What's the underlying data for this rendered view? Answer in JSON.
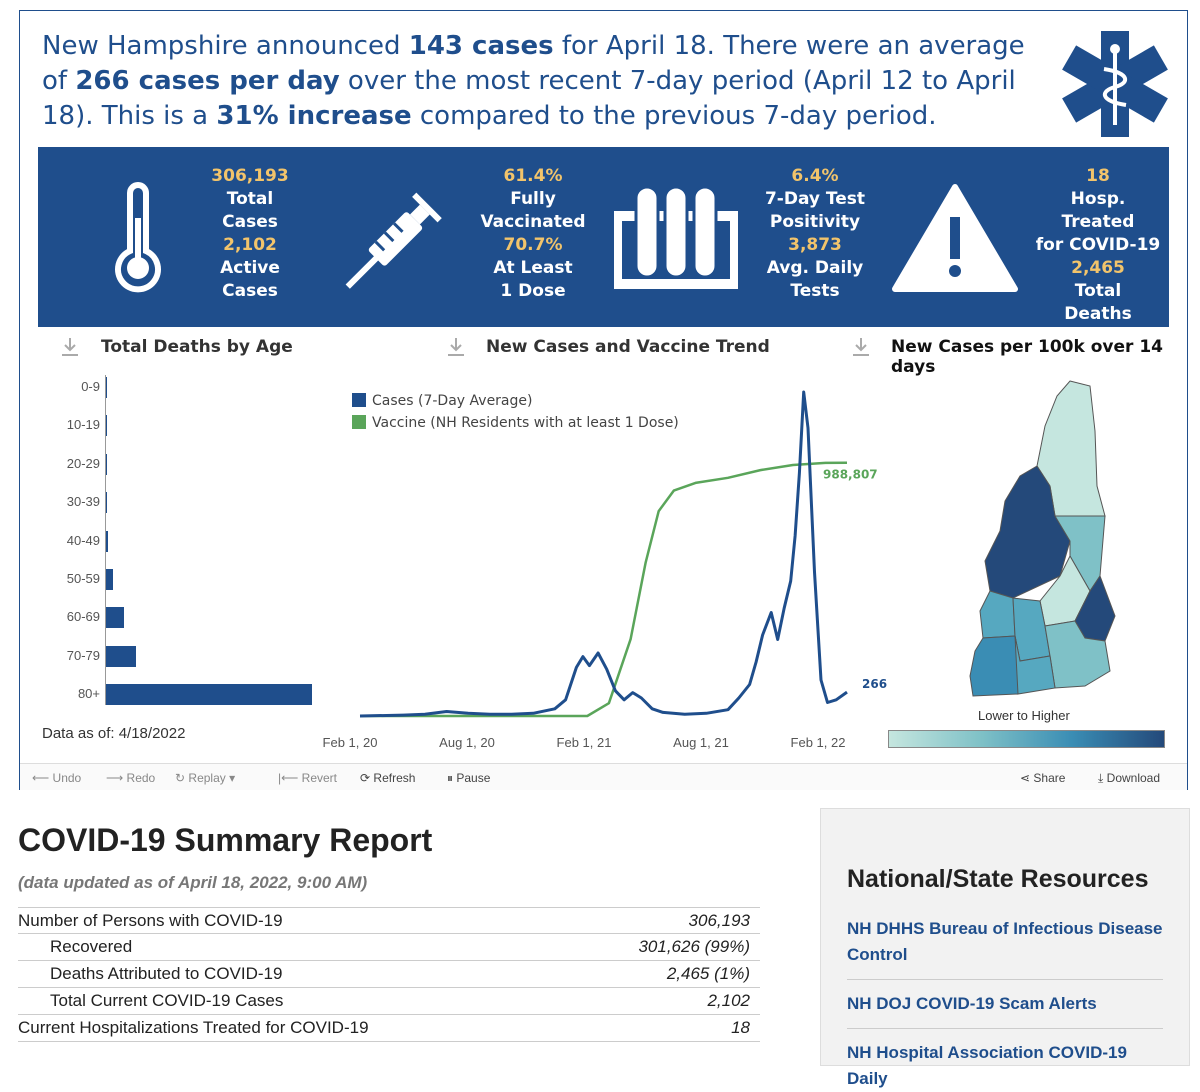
{
  "headline": {
    "p1": "New Hampshire announced ",
    "b1": "143 cases",
    "p2": " for April 18. There were an average of ",
    "b2": "266 cases per day",
    "p3": " over the most recent 7-day period (April 12 to April 18). This is a ",
    "b3": "31% increase",
    "p4": " compared to the previous 7-day period."
  },
  "banner": {
    "cases": {
      "total_value": "306,193",
      "total_label_1": "Total",
      "total_label_2": "Cases",
      "active_value": "2,102",
      "active_label_1": "Active",
      "active_label_2": "Cases"
    },
    "vaccination": {
      "full_value": "61.4%",
      "full_label_1": "Fully",
      "full_label_2": "Vaccinated",
      "dose_value": "70.7%",
      "dose_label_1": "At Least",
      "dose_label_2": "1 Dose"
    },
    "testing": {
      "pos_value": "6.4%",
      "pos_label_1": "7-Day Test",
      "pos_label_2": "Positivity",
      "tests_value": "3,873",
      "tests_label_1": "Avg. Daily",
      "tests_label_2": "Tests"
    },
    "hospital": {
      "hosp_value": "18",
      "hosp_label_1": "Hosp. Treated",
      "hosp_label_2": "for COVID-19",
      "deaths_value": "2,465",
      "deaths_label_1": "Total",
      "deaths_label_2": "Deaths"
    },
    "icons": [
      "thermometer-icon",
      "syringe-icon",
      "test-tubes-icon",
      "warning-icon"
    ]
  },
  "sections": {
    "deaths_by_age": "Total Deaths by Age",
    "trend": "New Cases and Vaccine Trend",
    "map": "New Cases per 100k over 14 days"
  },
  "deaths_by_age": {
    "labels": [
      "0-9",
      "10-19",
      "20-29",
      "30-39",
      "40-49",
      "50-59",
      "60-69",
      "70-79",
      "80+"
    ],
    "values": [
      0,
      1,
      1,
      10,
      20,
      55,
      150,
      250,
      1700
    ],
    "bar_scale_max": 1700,
    "data_as_of": "Data as of: 4/18/2022"
  },
  "chart_data": {
    "type": "line",
    "x_ticks": [
      "Feb 1, 20",
      "Aug 1, 20",
      "Feb 1, 21",
      "Aug 1, 21",
      "Feb 1, 22"
    ],
    "series": [
      {
        "name": "Cases (7-Day Average)",
        "color": "#1f4e8c",
        "end_label": "266",
        "points": [
          [
            0,
            0
          ],
          [
            2,
            10
          ],
          [
            3,
            20
          ],
          [
            4,
            50
          ],
          [
            5,
            30
          ],
          [
            6,
            20
          ],
          [
            7,
            20
          ],
          [
            8,
            30
          ],
          [
            9,
            80
          ],
          [
            9.5,
            180
          ],
          [
            10,
            540
          ],
          [
            10.3,
            660
          ],
          [
            10.6,
            560
          ],
          [
            11,
            700
          ],
          [
            11.4,
            520
          ],
          [
            11.8,
            280
          ],
          [
            12.2,
            180
          ],
          [
            12.6,
            260
          ],
          [
            13,
            200
          ],
          [
            13.5,
            80
          ],
          [
            14,
            40
          ],
          [
            15,
            20
          ],
          [
            16,
            30
          ],
          [
            17,
            70
          ],
          [
            17.5,
            200
          ],
          [
            18,
            350
          ],
          [
            18.3,
            600
          ],
          [
            18.6,
            900
          ],
          [
            19,
            1150
          ],
          [
            19.3,
            850
          ],
          [
            19.6,
            1200
          ],
          [
            19.9,
            1500
          ],
          [
            20.1,
            2000
          ],
          [
            20.3,
            2700
          ],
          [
            20.5,
            3600
          ],
          [
            20.7,
            3200
          ],
          [
            21,
            1600
          ],
          [
            21.3,
            400
          ],
          [
            21.6,
            150
          ],
          [
            22,
            180
          ],
          [
            22.5,
            266
          ]
        ]
      },
      {
        "name": "Vaccine (NH Residents with at least 1 Dose)",
        "color": "#5aa55a",
        "end_label": "988,807",
        "points": [
          [
            0,
            0
          ],
          [
            10.5,
            0
          ],
          [
            11.5,
            50000
          ],
          [
            12.5,
            300000
          ],
          [
            13.2,
            600000
          ],
          [
            13.8,
            800000
          ],
          [
            14.5,
            880000
          ],
          [
            15.5,
            910000
          ],
          [
            17,
            930000
          ],
          [
            18.5,
            960000
          ],
          [
            20,
            980000
          ],
          [
            21.5,
            988000
          ],
          [
            22.5,
            988807
          ]
        ]
      }
    ],
    "x_range": [
      0,
      27
    ],
    "cases_ylim": [
      0,
      3700
    ],
    "vaccine_ylim": [
      0,
      1300000
    ],
    "legend_position": "top-left"
  },
  "map": {
    "lower_to_higher": "Lower to Higher",
    "palette": [
      "#c5e6df",
      "#7fc1c7",
      "#56a8c0",
      "#3a8db4",
      "#24497a"
    ]
  },
  "toolbar": {
    "undo": "Undo",
    "redo": "Redo",
    "replay": "Replay",
    "revert": "Revert",
    "refresh": "Refresh",
    "pause": "Pause",
    "share": "Share",
    "download": "Download"
  },
  "report": {
    "title": "COVID-19 Summary Report",
    "updated": "(data updated as of April 18, 2022, 9:00 AM)",
    "rows": [
      {
        "label": "Number of Persons with COVID-19",
        "value": "306,193"
      },
      {
        "label": "Recovered",
        "value": "301,626 (99%)"
      },
      {
        "label": "Deaths Attributed to COVID-19",
        "value": "2,465 (1%)"
      },
      {
        "label": "Total Current COVID-19 Cases",
        "value": "2,102"
      },
      {
        "label": "Current Hospitalizations Treated for COVID-19",
        "value": "18"
      }
    ]
  },
  "resources": {
    "title": "National/State Resources",
    "links": [
      "NH DHHS Bureau of Infectious Disease Control",
      "NH DOJ COVID-19 Scam Alerts",
      "NH Hospital Association COVID-19 Daily"
    ]
  }
}
